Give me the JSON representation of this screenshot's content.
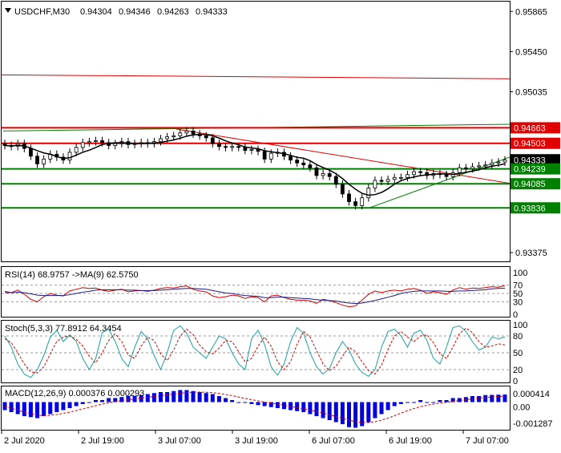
{
  "symbol_header": "USDCHF,M30",
  "ohlc": {
    "open": "0.94304",
    "high": "0.94346",
    "low": "0.94263",
    "close": "0.94333"
  },
  "colors": {
    "up": "#000000",
    "down": "#000000",
    "ma_line": "#000000",
    "resistance": "#e00000",
    "support": "#008000",
    "current": "#000000",
    "rsi_line": "#d00000",
    "rsi_ma": "#1a1a8a",
    "stoch_main": "#1aa0a0",
    "stoch_signal": "#d00000",
    "macd_hist": "#0000e0",
    "macd_signal": "#d00000"
  },
  "time_axis": [
    "2 Jul 2020",
    "2 Jul 19:00",
    "3 Jul 07:00",
    "3 Jul 19:00",
    "6 Jul 07:00",
    "6 Jul 19:00",
    "7 Jul 07:00"
  ],
  "chart_data": [
    {
      "type": "candlestick",
      "title": "USDCHF,M30",
      "ylim": [
        0.933,
        0.9595
      ],
      "y_ticks": [
        "0.95865",
        "0.95450",
        "0.95035",
        "0.94663",
        "0.94503",
        "0.94333",
        "0.94239",
        "0.94085",
        "0.93836",
        "0.93375"
      ],
      "levels": [
        {
          "value": 0.94663,
          "label": "0.94663",
          "kind": "resistance"
        },
        {
          "value": 0.94503,
          "label": "0.94503",
          "kind": "resistance"
        },
        {
          "value": 0.94333,
          "label": "0.94333",
          "kind": "current"
        },
        {
          "value": 0.94239,
          "label": "0.94239",
          "kind": "support"
        },
        {
          "value": 0.94085,
          "label": "0.94085",
          "kind": "support"
        },
        {
          "value": 0.93836,
          "label": "0.93836",
          "kind": "support"
        }
      ],
      "closes": [
        0.9448,
        0.9447,
        0.945,
        0.9445,
        0.9437,
        0.9429,
        0.9434,
        0.9439,
        0.9436,
        0.9433,
        0.9441,
        0.9446,
        0.9451,
        0.9452,
        0.9453,
        0.9451,
        0.9448,
        0.945,
        0.9452,
        0.9449,
        0.945,
        0.9451,
        0.945,
        0.9452,
        0.9455,
        0.9457,
        0.9458,
        0.9461,
        0.9463,
        0.946,
        0.9458,
        0.9456,
        0.945,
        0.9447,
        0.9446,
        0.9447,
        0.9446,
        0.9443,
        0.9444,
        0.9442,
        0.9434,
        0.944,
        0.9441,
        0.9437,
        0.9433,
        0.943,
        0.9428,
        0.9425,
        0.9417,
        0.9419,
        0.9416,
        0.9408,
        0.9398,
        0.939,
        0.9386,
        0.9394,
        0.9404,
        0.9412,
        0.9411,
        0.9413,
        0.9415,
        0.9415,
        0.9418,
        0.9421,
        0.942,
        0.9417,
        0.9419,
        0.9418,
        0.9416,
        0.942,
        0.9425,
        0.9424,
        0.9426,
        0.9427,
        0.9428,
        0.943,
        0.9431,
        0.9433
      ]
    },
    {
      "type": "line",
      "title": "RSI(14) 68.9757  ->MA(9) 62.5750",
      "ylim": [
        0,
        100
      ],
      "y_ticks": [
        "100",
        "70",
        "50",
        "30",
        "0"
      ],
      "series": [
        {
          "name": "RSI(14)",
          "values": [
            55,
            52,
            58,
            48,
            36,
            30,
            42,
            50,
            46,
            44,
            56,
            60,
            64,
            62,
            63,
            58,
            55,
            58,
            60,
            54,
            56,
            57,
            55,
            58,
            62,
            64,
            63,
            66,
            68,
            60,
            56,
            54,
            44,
            40,
            42,
            46,
            44,
            38,
            42,
            40,
            30,
            44,
            46,
            40,
            36,
            34,
            34,
            32,
            26,
            36,
            33,
            28,
            22,
            18,
            20,
            34,
            48,
            56,
            52,
            56,
            58,
            56,
            60,
            62,
            58,
            50,
            54,
            52,
            48,
            58,
            64,
            60,
            63,
            62,
            64,
            66,
            65,
            69
          ]
        },
        {
          "name": "MA(9)",
          "values": [
            52,
            52,
            53,
            52,
            49,
            46,
            45,
            45,
            45,
            45,
            47,
            50,
            53,
            55,
            58,
            59,
            59,
            59,
            59,
            58,
            58,
            57,
            57,
            57,
            58,
            59,
            60,
            61,
            62,
            62,
            61,
            60,
            57,
            54,
            51,
            50,
            47,
            45,
            44,
            43,
            40,
            40,
            41,
            41,
            40,
            39,
            38,
            37,
            35,
            34,
            33,
            32,
            29,
            27,
            26,
            27,
            30,
            33,
            37,
            41,
            45,
            50,
            53,
            55,
            56,
            56,
            56,
            56,
            55,
            55,
            56,
            56,
            57,
            58,
            59,
            61,
            62,
            62.6
          ]
        }
      ]
    },
    {
      "type": "line",
      "title": "Stoch(5,3,3) 77.8912 64.3454",
      "ylim": [
        0,
        100
      ],
      "y_ticks": [
        "100",
        "80",
        "50",
        "20",
        "0"
      ],
      "series": [
        {
          "name": "Stoch main",
          "values": [
            80,
            60,
            30,
            12,
            6,
            20,
            45,
            78,
            90,
            70,
            82,
            70,
            40,
            20,
            40,
            86,
            92,
            70,
            40,
            25,
            60,
            88,
            75,
            45,
            20,
            50,
            90,
            98,
            85,
            60,
            50,
            40,
            60,
            80,
            75,
            50,
            30,
            20,
            75,
            90,
            65,
            25,
            10,
            30,
            70,
            95,
            85,
            50,
            25,
            12,
            22,
            50,
            70,
            55,
            30,
            15,
            8,
            20,
            60,
            88,
            92,
            80,
            60,
            85,
            90,
            72,
            40,
            30,
            60,
            95,
            98,
            88,
            70,
            55,
            60,
            78,
            75,
            78
          ]
        },
        {
          "name": "Stoch signal",
          "values": [
            75,
            68,
            50,
            30,
            16,
            14,
            25,
            48,
            70,
            78,
            80,
            74,
            62,
            44,
            32,
            50,
            72,
            84,
            70,
            46,
            40,
            62,
            78,
            72,
            48,
            36,
            55,
            80,
            92,
            82,
            64,
            52,
            48,
            58,
            72,
            70,
            52,
            34,
            40,
            62,
            78,
            62,
            34,
            20,
            34,
            65,
            88,
            78,
            54,
            30,
            18,
            26,
            44,
            60,
            52,
            34,
            18,
            12,
            28,
            56,
            80,
            88,
            78,
            70,
            80,
            82,
            68,
            48,
            40,
            60,
            84,
            94,
            86,
            70,
            60,
            62,
            66,
            64
          ]
        }
      ]
    },
    {
      "type": "bar",
      "title": "MACD(12,26,9) 0.000376 0.000293",
      "y_ticks": [
        "0.000414",
        "0.00",
        "-0.001287"
      ],
      "series": [
        {
          "name": "MACD",
          "values": [
            -0.0004,
            -0.0005,
            -0.0006,
            -0.0007,
            -0.00075,
            -0.0008,
            -0.0007,
            -0.0006,
            -0.0005,
            -0.0004,
            -0.0003,
            -0.0002,
            -0.0001,
            0.0,
            0.0001,
            0.0001,
            0.0002,
            0.0002,
            0.00025,
            0.0003,
            0.0003,
            0.00035,
            0.0004,
            0.00045,
            0.0005,
            0.0005,
            0.00055,
            0.0006,
            0.0006,
            0.00055,
            0.0005,
            0.00045,
            0.0004,
            0.0003,
            0.0002,
            0.0001,
            0.0,
            0.0,
            -0.0001,
            -0.00015,
            -0.0002,
            -0.00025,
            -0.0003,
            -0.00035,
            -0.0004,
            -0.00045,
            -0.0005,
            -0.0006,
            -0.0007,
            -0.0008,
            -0.0009,
            -0.001,
            -0.0011,
            -0.00125,
            -0.00128,
            -0.0012,
            -0.001,
            -0.0008,
            -0.0006,
            -0.0004,
            -0.0002,
            -0.0001,
            0.0,
            0.0,
            0.0001,
            0.0,
            0.0,
            0.0001,
            0.0001,
            0.0002,
            0.0002,
            0.00025,
            0.0003,
            0.0003,
            0.00035,
            0.00036,
            0.00037,
            0.000376
          ]
        },
        {
          "name": "Signal",
          "values": [
            -0.0002,
            -0.0003,
            -0.0004,
            -0.0005,
            -0.00058,
            -0.00065,
            -0.00068,
            -0.00066,
            -0.00062,
            -0.00056,
            -0.0005,
            -0.00042,
            -0.00034,
            -0.00026,
            -0.00018,
            -0.0001,
            -4e-05,
            2e-05,
            8e-05,
            0.00012,
            0.00016,
            0.0002,
            0.00024,
            0.00028,
            0.00032,
            0.00036,
            0.0004,
            0.00044,
            0.00047,
            0.00049,
            0.0005,
            0.00049,
            0.00047,
            0.00043,
            0.00038,
            0.00032,
            0.00025,
            0.00018,
            0.00012,
            6e-05,
            0.0,
            -5e-05,
            -0.0001,
            -0.00016,
            -0.00022,
            -0.00028,
            -0.00034,
            -0.0004,
            -0.00047,
            -0.00055,
            -0.00063,
            -0.00072,
            -0.0008,
            -0.0009,
            -0.00098,
            -0.00102,
            -0.00102,
            -0.00098,
            -0.0009,
            -0.0008,
            -0.00068,
            -0.00055,
            -0.00043,
            -0.00032,
            -0.00023,
            -0.00016,
            -0.0001,
            -5e-05,
            -1e-05,
            3e-05,
            8e-05,
            0.00012,
            0.00016,
            0.0002,
            0.00023,
            0.00026,
            0.00028,
            0.000293
          ]
        }
      ]
    }
  ]
}
